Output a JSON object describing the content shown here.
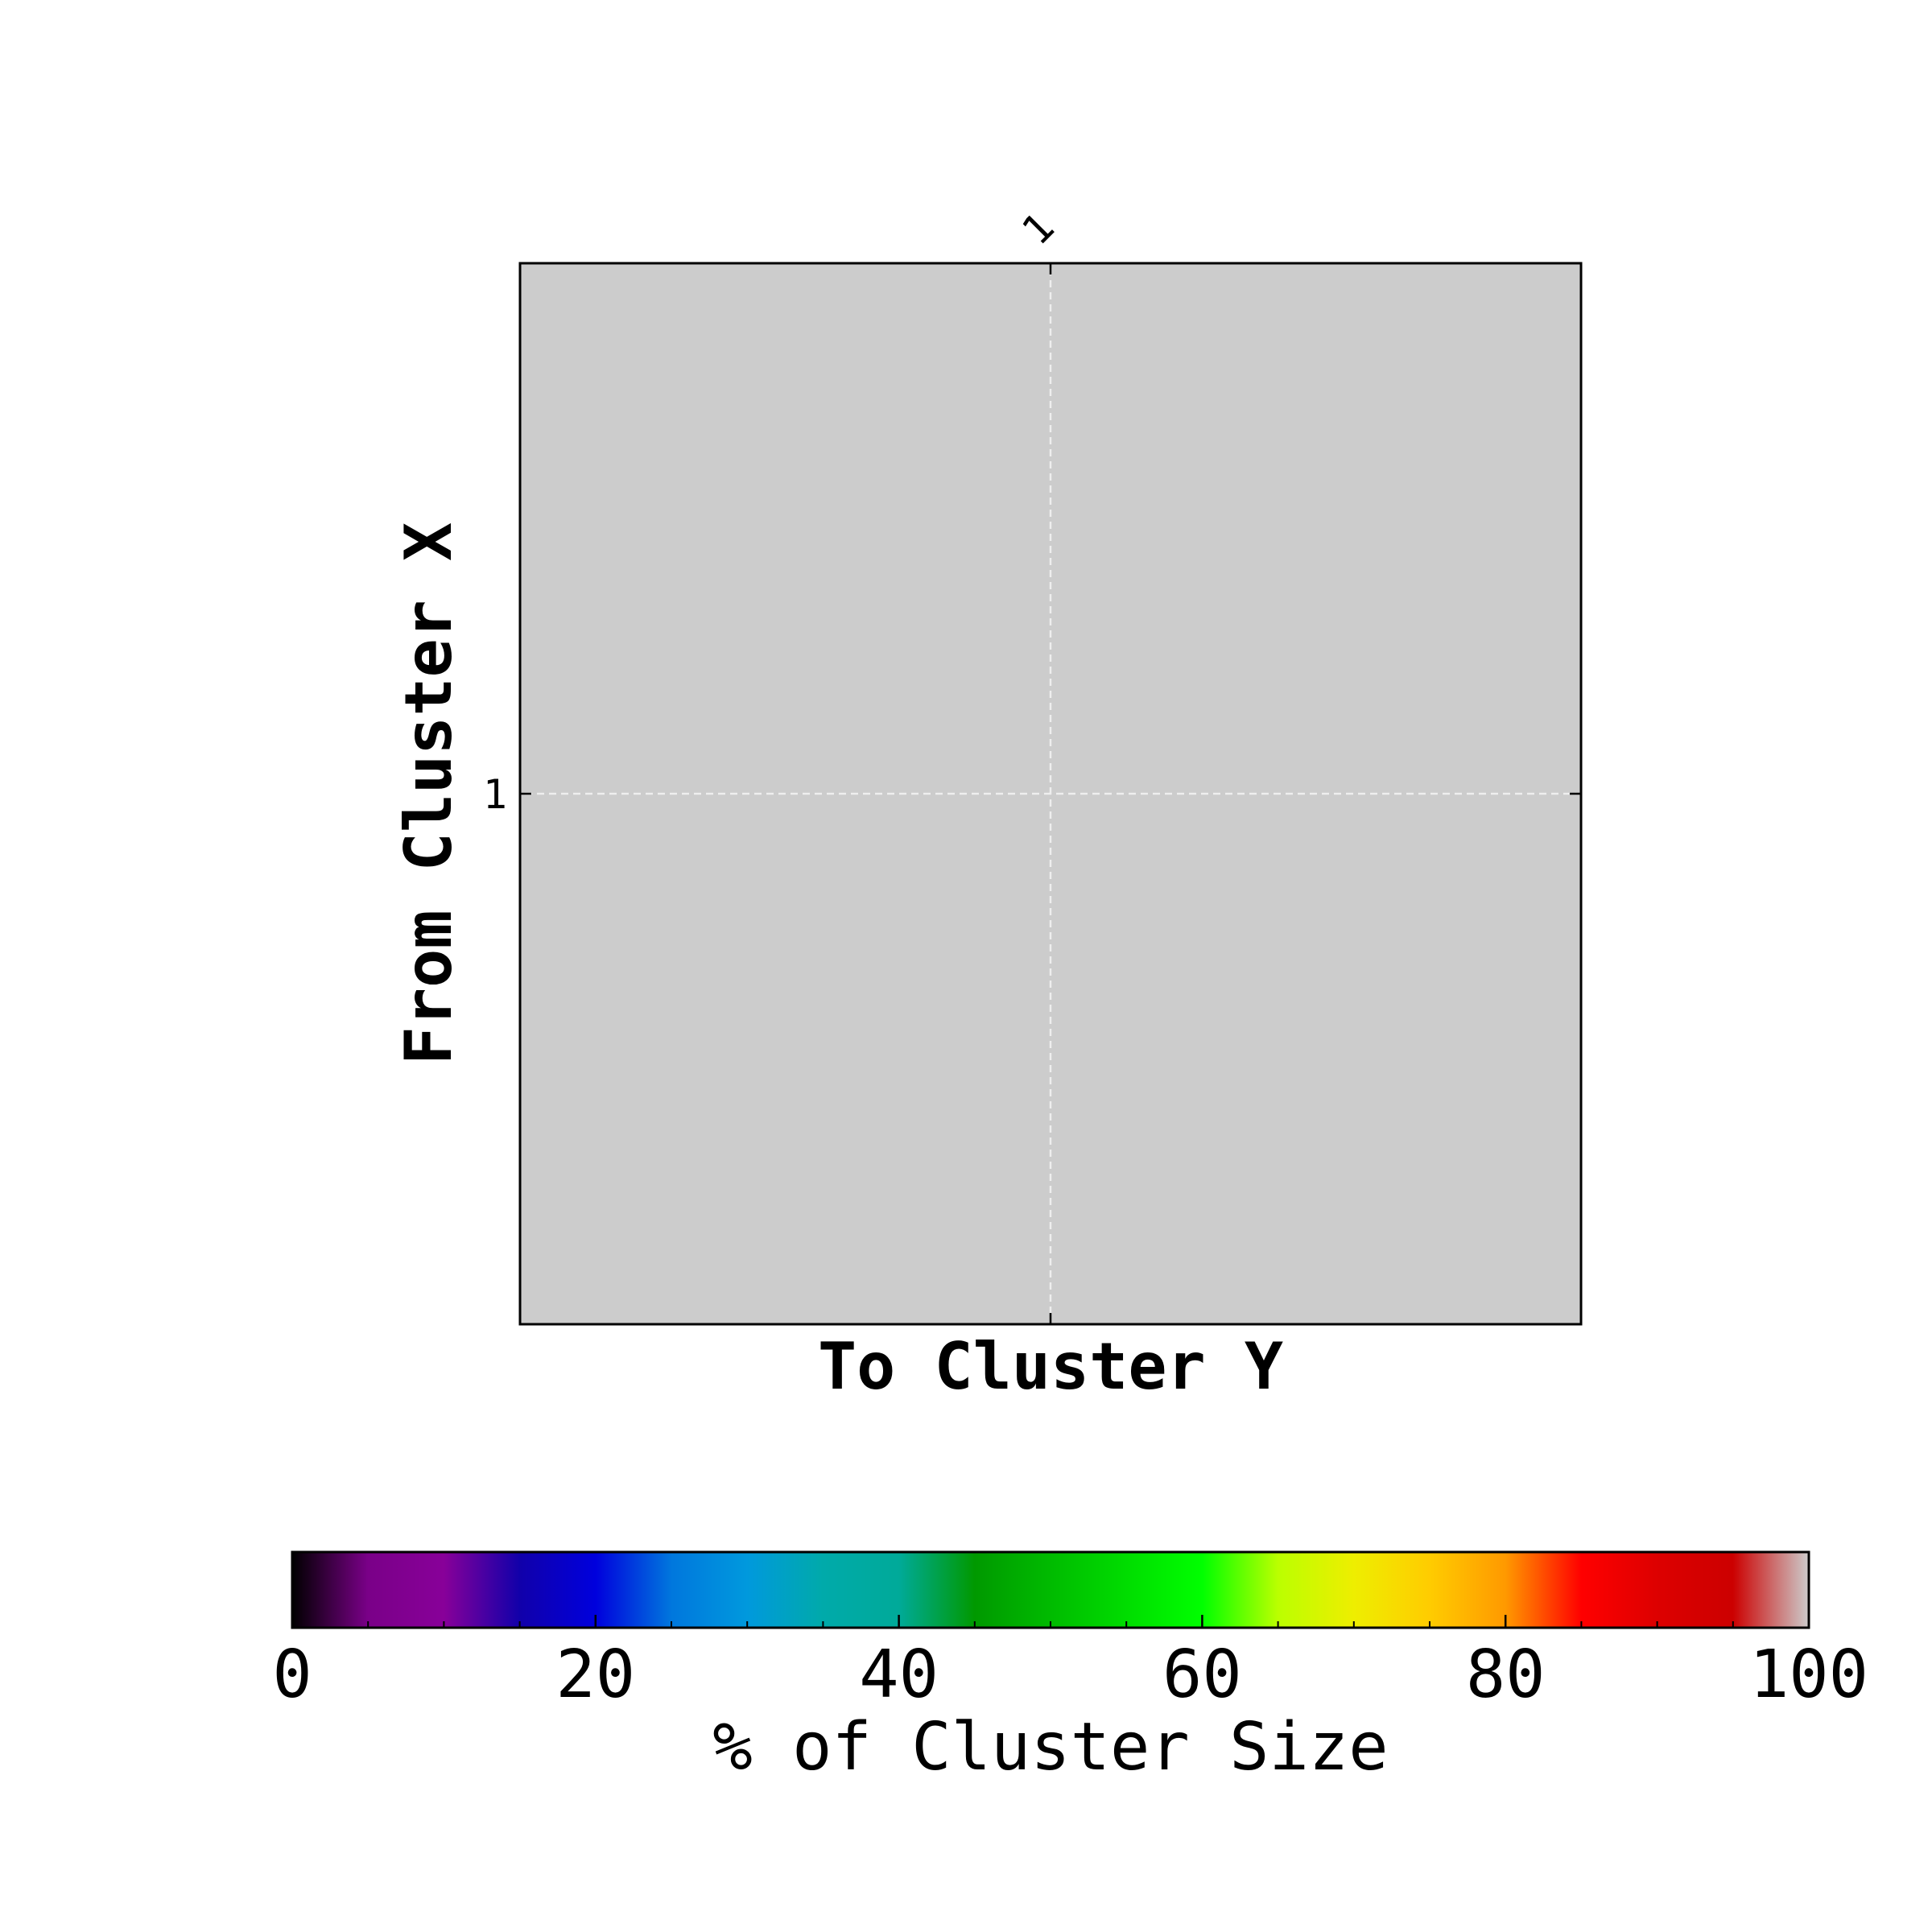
{
  "chart_data": {
    "type": "heatmap",
    "title": "",
    "xlabel": "To Cluster Y",
    "ylabel": "From Cluster X",
    "x_categories": [
      "1"
    ],
    "y_categories": [
      "1"
    ],
    "values": [
      [
        null
      ]
    ],
    "cell_color": "#cccccc",
    "grid": true,
    "grid_color": "#eeeeee",
    "colorbar": {
      "label": "% of Cluster Size",
      "range": [
        0,
        100
      ],
      "ticks": [
        "0",
        "20",
        "40",
        "60",
        "80",
        "100"
      ],
      "minor_tick_step": 5,
      "colormap": "nipy_spectral",
      "orientation": "horizontal",
      "placement": "bottom"
    }
  }
}
